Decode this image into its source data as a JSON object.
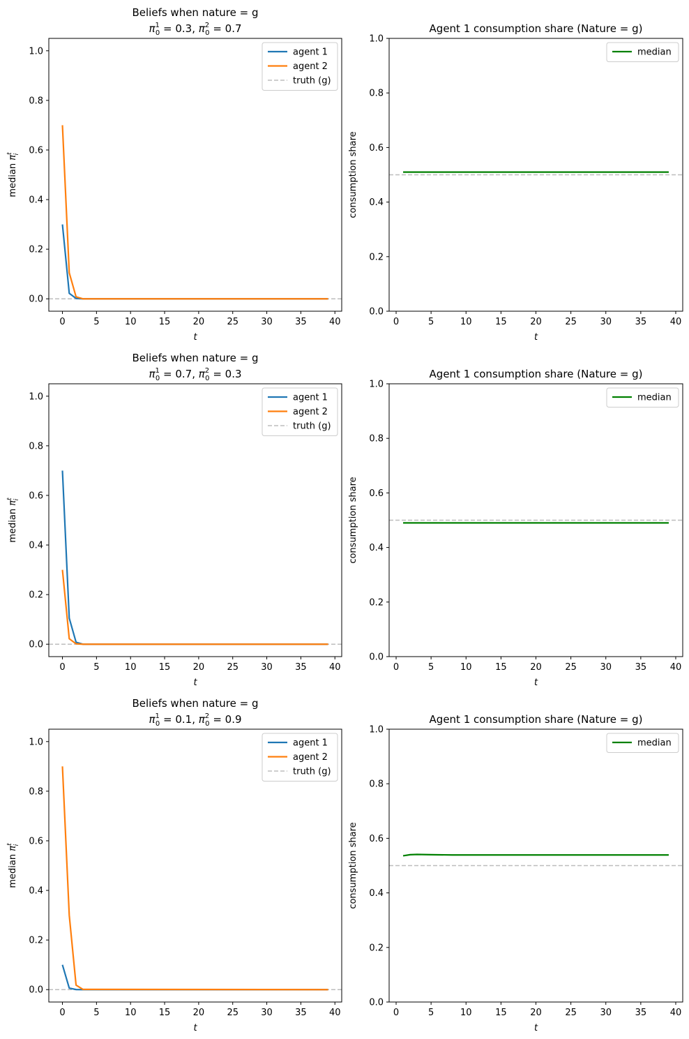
{
  "chart_data": [
    {
      "type": "line",
      "title": "Beliefs when nature = g",
      "subtitle": "π01 = 0.3, π02 = 0.7",
      "subtitle_parts": {
        "sym": "π",
        "sub": "0",
        "sup1": "1",
        "val1": "0.3",
        "sup2": "2",
        "val2": "0.7"
      },
      "xlabel": "t",
      "ylabel": "median π",
      "ylabel_parts": {
        "sub": "i",
        "sup": "t"
      },
      "xlim": [
        -2,
        41
      ],
      "ylim": [
        -0.05,
        1.05
      ],
      "xticks": [
        0,
        5,
        10,
        15,
        20,
        25,
        30,
        35,
        40
      ],
      "yticks": [
        0.0,
        0.2,
        0.4,
        0.6,
        0.8,
        1.0
      ],
      "ytick_labels": [
        "0.0",
        "0.2",
        "0.4",
        "0.6",
        "0.8",
        "1.0"
      ],
      "grid": false,
      "legend": "upper-right",
      "hline": {
        "y": 0.0,
        "name": "truth (g)",
        "color": "#bdbdbd",
        "dashed": true
      },
      "series": [
        {
          "name": "agent 1",
          "color": "#1f77b4",
          "x": [
            0,
            1,
            2,
            3,
            39
          ],
          "y": [
            0.3,
            0.022,
            0.0017,
            0.0,
            0.0
          ]
        },
        {
          "name": "agent 2",
          "color": "#ff7f0e",
          "x": [
            0,
            1,
            2,
            3,
            39
          ],
          "y": [
            0.7,
            0.105,
            0.008,
            0.0,
            0.0
          ]
        }
      ]
    },
    {
      "type": "line",
      "title": "Agent 1 consumption share (Nature = g)",
      "xlabel": "t",
      "ylabel": "consumption share",
      "xlim": [
        -1,
        41
      ],
      "ylim": [
        0,
        1
      ],
      "xticks": [
        0,
        5,
        10,
        15,
        20,
        25,
        30,
        35,
        40
      ],
      "yticks": [
        0.0,
        0.2,
        0.4,
        0.6,
        0.8,
        1.0
      ],
      "ytick_labels": [
        "0.0",
        "0.2",
        "0.4",
        "0.6",
        "0.8",
        "1.0"
      ],
      "grid": false,
      "legend": "upper-right",
      "hline": {
        "y": 0.5,
        "color": "#bdbdbd",
        "dashed": true
      },
      "series": [
        {
          "name": "median",
          "color": "#008000",
          "x": [
            1,
            39
          ],
          "y": [
            0.51,
            0.51
          ]
        }
      ]
    },
    {
      "type": "line",
      "title": "Beliefs when nature = g",
      "subtitle": "π01 = 0.7, π02 = 0.3",
      "subtitle_parts": {
        "sym": "π",
        "sub": "0",
        "sup1": "1",
        "val1": "0.7",
        "sup2": "2",
        "val2": "0.3"
      },
      "xlabel": "t",
      "ylabel": "median π",
      "ylabel_parts": {
        "sub": "i",
        "sup": "t"
      },
      "xlim": [
        -2,
        41
      ],
      "ylim": [
        -0.05,
        1.05
      ],
      "xticks": [
        0,
        5,
        10,
        15,
        20,
        25,
        30,
        35,
        40
      ],
      "yticks": [
        0.0,
        0.2,
        0.4,
        0.6,
        0.8,
        1.0
      ],
      "ytick_labels": [
        "0.0",
        "0.2",
        "0.4",
        "0.6",
        "0.8",
        "1.0"
      ],
      "grid": false,
      "legend": "upper-right",
      "hline": {
        "y": 0.0,
        "name": "truth (g)",
        "color": "#bdbdbd",
        "dashed": true
      },
      "series": [
        {
          "name": "agent 1",
          "color": "#1f77b4",
          "x": [
            0,
            1,
            2,
            3,
            39
          ],
          "y": [
            0.7,
            0.105,
            0.008,
            0.0,
            0.0
          ]
        },
        {
          "name": "agent 2",
          "color": "#ff7f0e",
          "x": [
            0,
            1,
            2,
            3,
            39
          ],
          "y": [
            0.3,
            0.022,
            0.0017,
            0.0,
            0.0
          ]
        }
      ]
    },
    {
      "type": "line",
      "title": "Agent 1 consumption share (Nature = g)",
      "xlabel": "t",
      "ylabel": "consumption share",
      "xlim": [
        -1,
        41
      ],
      "ylim": [
        0,
        1
      ],
      "xticks": [
        0,
        5,
        10,
        15,
        20,
        25,
        30,
        35,
        40
      ],
      "yticks": [
        0.0,
        0.2,
        0.4,
        0.6,
        0.8,
        1.0
      ],
      "ytick_labels": [
        "0.0",
        "0.2",
        "0.4",
        "0.6",
        "0.8",
        "1.0"
      ],
      "grid": false,
      "legend": "upper-right",
      "hline": {
        "y": 0.5,
        "color": "#bdbdbd",
        "dashed": true
      },
      "series": [
        {
          "name": "median",
          "color": "#008000",
          "x": [
            1,
            39
          ],
          "y": [
            0.49,
            0.49
          ]
        }
      ]
    },
    {
      "type": "line",
      "title": "Beliefs when nature = g",
      "subtitle": "π01 = 0.1, π02 = 0.9",
      "subtitle_parts": {
        "sym": "π",
        "sub": "0",
        "sup1": "1",
        "val1": "0.1",
        "sup2": "2",
        "val2": "0.9"
      },
      "xlabel": "t",
      "ylabel": "median π",
      "ylabel_parts": {
        "sub": "i",
        "sup": "t"
      },
      "xlim": [
        -2,
        41
      ],
      "ylim": [
        -0.05,
        1.05
      ],
      "xticks": [
        0,
        5,
        10,
        15,
        20,
        25,
        30,
        35,
        40
      ],
      "yticks": [
        0.0,
        0.2,
        0.4,
        0.6,
        0.8,
        1.0
      ],
      "ytick_labels": [
        "0.0",
        "0.2",
        "0.4",
        "0.6",
        "0.8",
        "1.0"
      ],
      "grid": false,
      "legend": "upper-right",
      "hline": {
        "y": 0.0,
        "name": "truth (g)",
        "color": "#bdbdbd",
        "dashed": true
      },
      "series": [
        {
          "name": "agent 1",
          "color": "#1f77b4",
          "x": [
            0,
            1,
            2,
            3,
            39
          ],
          "y": [
            0.1,
            0.006,
            0.0003,
            0.0,
            0.0
          ]
        },
        {
          "name": "agent 2",
          "color": "#ff7f0e",
          "x": [
            0,
            1,
            2,
            3,
            39
          ],
          "y": [
            0.9,
            0.3,
            0.018,
            0.001,
            0.0
          ]
        }
      ]
    },
    {
      "type": "line",
      "title": "Agent 1 consumption share (Nature = g)",
      "xlabel": "t",
      "ylabel": "consumption share",
      "xlim": [
        -1,
        41
      ],
      "ylim": [
        0,
        1
      ],
      "xticks": [
        0,
        5,
        10,
        15,
        20,
        25,
        30,
        35,
        40
      ],
      "yticks": [
        0.0,
        0.2,
        0.4,
        0.6,
        0.8,
        1.0
      ],
      "ytick_labels": [
        "0.0",
        "0.2",
        "0.4",
        "0.6",
        "0.8",
        "1.0"
      ],
      "grid": false,
      "legend": "upper-right",
      "hline": {
        "y": 0.5,
        "color": "#bdbdbd",
        "dashed": true
      },
      "series": [
        {
          "name": "median",
          "color": "#008000",
          "x": [
            1,
            2,
            3,
            5,
            8,
            39
          ],
          "y": [
            0.536,
            0.54,
            0.541,
            0.54,
            0.539,
            0.539
          ]
        }
      ]
    }
  ]
}
